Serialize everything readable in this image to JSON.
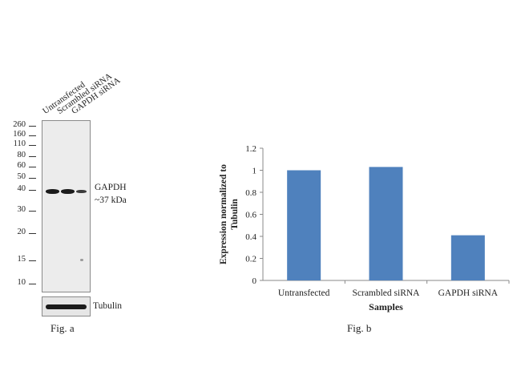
{
  "fig_a": {
    "lanes": [
      "Untransfected",
      "Scrambled siRNA",
      "GAPDH  siRNA"
    ],
    "markers": [
      "260",
      "160",
      "110",
      "80",
      "60",
      "50",
      "40",
      "30",
      "20",
      "15",
      "10"
    ],
    "target_name": "GAPDH",
    "target_size": "~37 kDa",
    "loading_control": "Tubulin",
    "caption": "Fig. a"
  },
  "fig_b": {
    "caption": "Fig. b"
  },
  "chart_data": {
    "type": "bar",
    "categories": [
      "Untransfected",
      "Scrambled siRNA",
      "GAPDH siRNA"
    ],
    "values": [
      1.0,
      1.03,
      0.41
    ],
    "xlabel": "Samples",
    "ylabel": "Expression  normalized to Tubulin",
    "ylabel_line1": "Expression  normalized to",
    "ylabel_line2": "Tubulin",
    "ylim": [
      0,
      1.2
    ],
    "yticks": [
      "0",
      "0.2",
      "0.4",
      "0.6",
      "0.8",
      "1",
      "1.2"
    ],
    "bar_color": "#4f81bd",
    "grid": false
  }
}
